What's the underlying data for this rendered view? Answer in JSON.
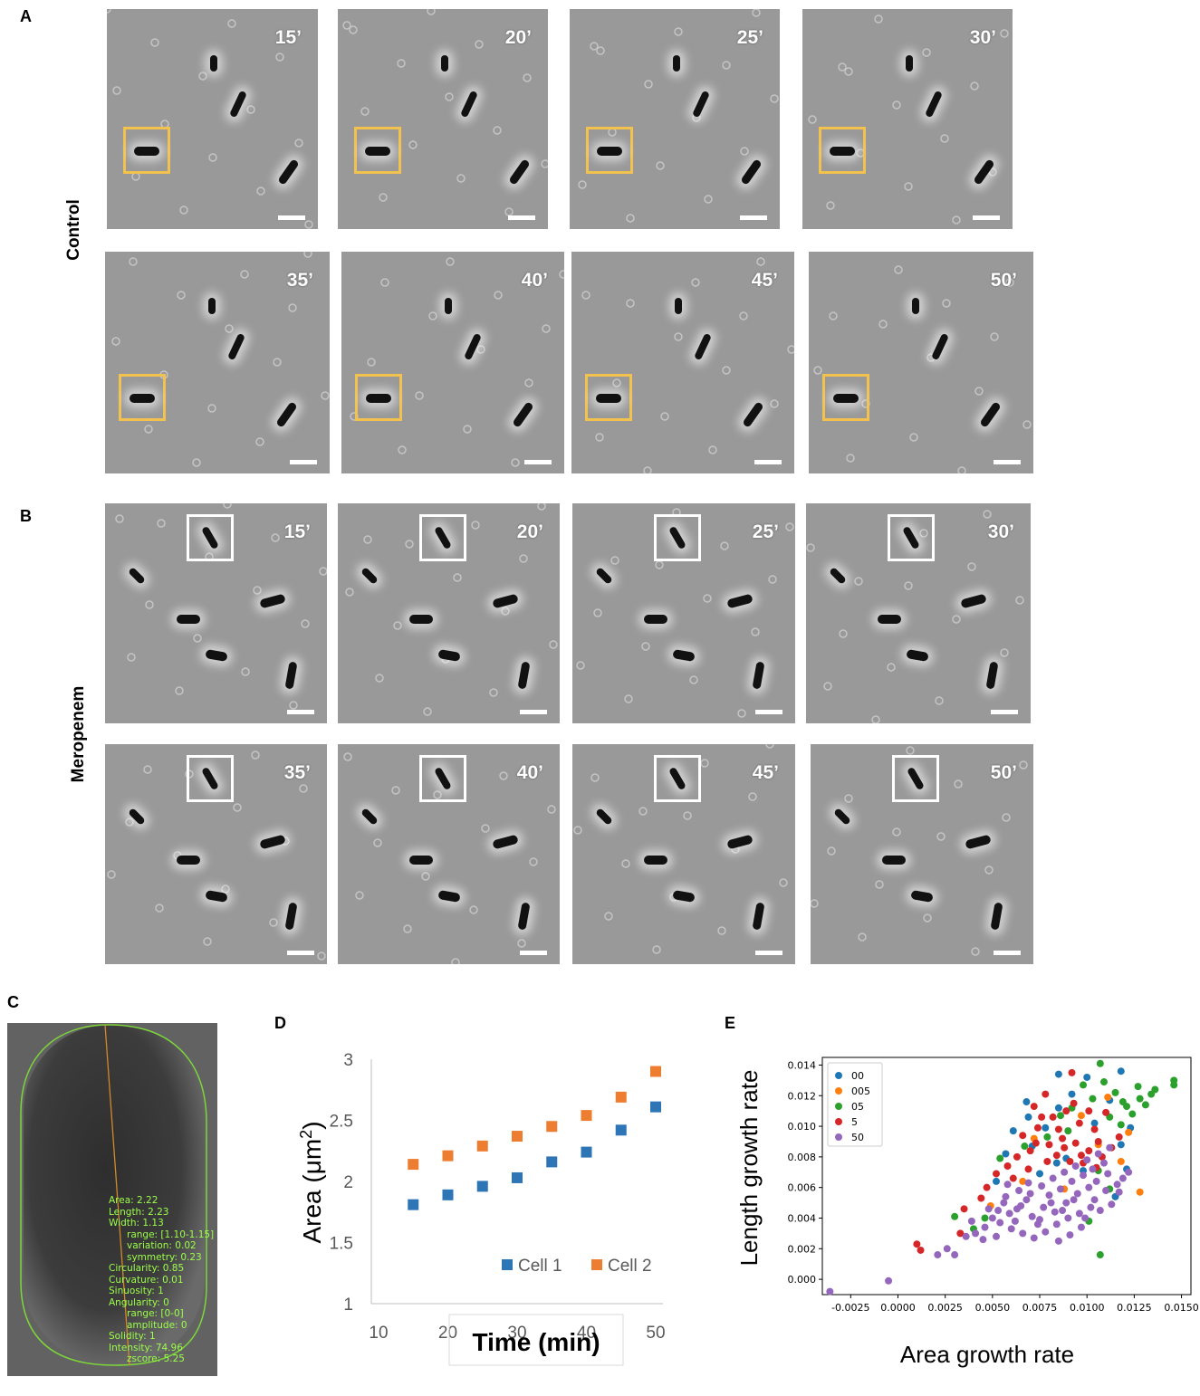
{
  "panel_labels": {
    "a": "A",
    "b": "B",
    "c": "C",
    "d": "D",
    "e": "E"
  },
  "row_labels": {
    "control": "Control",
    "meropenem": "Meropenem"
  },
  "time_labels": [
    "15’",
    "20’",
    "25’",
    "30’",
    "35’",
    "40’",
    "45’",
    "50’"
  ],
  "colors": {
    "control_box": "#f2c14e",
    "meropenem_box": "#ffffff",
    "cell1": "#2e75b6",
    "cell2": "#ed7d31",
    "outline": "#7dd63a"
  },
  "cell_measurements": [
    "Area: 2.22",
    "Length: 2.23",
    "Width: 1.13",
    "range: [1.10-1.15]",
    "variation: 0.02",
    "symmetry: 0.23",
    "Circularity: 0.85",
    "Curvature: 0.01",
    "Sinuosity: 1",
    "Angularity: 0",
    "range: [0-0]",
    "amplitude: 0",
    "Solidity: 1",
    "Intensity: 74.96",
    "zscore: 5.25"
  ],
  "chart_data": [
    {
      "type": "scatter",
      "panel": "D",
      "xlabel": "Time (min)",
      "ylabel": "Area (μm2)",
      "ylabel_main": "Area (μm",
      "ylabel_sup": "2",
      "ylabel_end": ")",
      "xlim": [
        10,
        50
      ],
      "ylim": [
        1,
        3
      ],
      "xticks": [
        "10",
        "20",
        "30",
        "40",
        "50"
      ],
      "yticks": [
        "1",
        "1.5",
        "2",
        "2.5",
        "3"
      ],
      "legend_position": "bottom-right",
      "series": [
        {
          "name": "Cell 1",
          "color": "#2e75b6",
          "x": [
            15,
            20,
            25,
            30,
            35,
            40,
            45,
            50
          ],
          "y": [
            1.81,
            1.89,
            1.96,
            2.03,
            2.16,
            2.24,
            2.42,
            2.61
          ]
        },
        {
          "name": "Cell 2",
          "color": "#ed7d31",
          "x": [
            15,
            20,
            25,
            30,
            35,
            40,
            45,
            50
          ],
          "y": [
            2.14,
            2.21,
            2.29,
            2.37,
            2.45,
            2.54,
            2.69,
            2.9
          ]
        }
      ]
    },
    {
      "type": "scatter",
      "panel": "E",
      "xlabel": "Area growth rate",
      "ylabel": "Length growth rate",
      "xlim": [
        -0.004,
        0.0155
      ],
      "ylim": [
        -0.001,
        0.0145
      ],
      "xticks": [
        "-0.0025",
        "0.0000",
        "0.0025",
        "0.0050",
        "0.0075",
        "0.0100",
        "0.0125",
        "0.0150"
      ],
      "yticks": [
        "0.000",
        "0.002",
        "0.004",
        "0.006",
        "0.008",
        "0.010",
        "0.012",
        "0.014"
      ],
      "legend_position": "top-left",
      "series": [
        {
          "name": "00",
          "color": "#1f77b4",
          "points": [
            [
              0.0085,
              0.0134
            ],
            [
              0.01,
              0.0132
            ],
            [
              0.0118,
              0.0136
            ],
            [
              0.0068,
              0.0116
            ],
            [
              0.0092,
              0.0121
            ],
            [
              0.0112,
              0.0117
            ],
            [
              0.0061,
              0.0097
            ],
            [
              0.0078,
              0.0099
            ],
            [
              0.0104,
              0.0102
            ],
            [
              0.0123,
              0.0099
            ],
            [
              0.0057,
              0.0082
            ],
            [
              0.0071,
              0.0087
            ],
            [
              0.0089,
              0.0079
            ],
            [
              0.0118,
              0.0088
            ],
            [
              0.0052,
              0.0064
            ],
            [
              0.0075,
              0.0069
            ],
            [
              0.0084,
              0.0076
            ],
            [
              0.0098,
              0.0071
            ],
            [
              0.0115,
              0.0054
            ],
            [
              0.0121,
              0.0072
            ],
            [
              0.0069,
              0.0106
            ],
            [
              0.0085,
              0.0112
            ]
          ]
        },
        {
          "name": "005",
          "color": "#ff7f0e",
          "points": [
            [
              0.0128,
              0.0057
            ],
            [
              0.0118,
              0.0077
            ],
            [
              0.0106,
              0.0088
            ],
            [
              0.0097,
              0.0107
            ],
            [
              0.0111,
              0.0119
            ],
            [
              0.0066,
              0.0064
            ],
            [
              0.0049,
              0.0048
            ],
            [
              0.0088,
              0.0059
            ],
            [
              0.0122,
              0.0096
            ],
            [
              0.0072,
              0.0092
            ]
          ]
        },
        {
          "name": "05",
          "color": "#2ca02c",
          "points": [
            [
              0.0146,
              0.013
            ],
            [
              0.0146,
              0.0127
            ],
            [
              0.0134,
              0.0121
            ],
            [
              0.0127,
              0.0126
            ],
            [
              0.0121,
              0.0113
            ],
            [
              0.0115,
              0.0122
            ],
            [
              0.0107,
              0.0141
            ],
            [
              0.0103,
              0.0118
            ],
            [
              0.0112,
              0.0106
            ],
            [
              0.0124,
              0.0108
            ],
            [
              0.0131,
              0.0114
            ],
            [
              0.0118,
              0.0101
            ],
            [
              0.0098,
              0.0127
            ],
            [
              0.0092,
              0.0112
            ],
            [
              0.0086,
              0.0107
            ],
            [
              0.0079,
              0.0093
            ],
            [
              0.0067,
              0.0087
            ],
            [
              0.0054,
              0.0079
            ],
            [
              0.0106,
              0.0071
            ],
            [
              0.0112,
              0.0059
            ],
            [
              0.0101,
              0.0038
            ],
            [
              0.0107,
              0.0016
            ],
            [
              0.0046,
              0.004
            ],
            [
              0.003,
              0.0041
            ],
            [
              0.004,
              0.0033
            ],
            [
              0.0119,
              0.0116
            ],
            [
              0.0128,
              0.0118
            ],
            [
              0.0136,
              0.0124
            ],
            [
              0.0109,
              0.0129
            ],
            [
              0.009,
              0.0097
            ]
          ]
        },
        {
          "name": "5",
          "color": "#d62728",
          "points": [
            [
              0.0092,
              0.0135
            ],
            [
              0.0078,
              0.0121
            ],
            [
              0.0072,
              0.0113
            ],
            [
              0.0082,
              0.0106
            ],
            [
              0.0089,
              0.011
            ],
            [
              0.0096,
              0.0102
            ],
            [
              0.0104,
              0.0098
            ],
            [
              0.0074,
              0.0099
            ],
            [
              0.0066,
              0.0094
            ],
            [
              0.008,
              0.0088
            ],
            [
              0.0087,
              0.0092
            ],
            [
              0.0094,
              0.0089
            ],
            [
              0.0101,
              0.0084
            ],
            [
              0.0108,
              0.008
            ],
            [
              0.0113,
              0.0086
            ],
            [
              0.007,
              0.0084
            ],
            [
              0.0063,
              0.008
            ],
            [
              0.0058,
              0.0074
            ],
            [
              0.0084,
              0.0081
            ],
            [
              0.0091,
              0.0077
            ],
            [
              0.0098,
              0.0076
            ],
            [
              0.0105,
              0.0073
            ],
            [
              0.0052,
              0.0069
            ],
            [
              0.0047,
              0.006
            ],
            [
              0.0044,
              0.0053
            ],
            [
              0.0035,
              0.0046
            ],
            [
              0.0033,
              0.003
            ],
            [
              0.001,
              0.0023
            ],
            [
              0.0012,
              0.0019
            ],
            [
              0.0076,
              0.0106
            ],
            [
              0.0085,
              0.0098
            ],
            [
              0.0093,
              0.0115
            ],
            [
              0.0101,
              0.011
            ],
            [
              0.011,
              0.0109
            ],
            [
              0.0117,
              0.0093
            ],
            [
              0.0079,
              0.0077
            ],
            [
              0.0069,
              0.0072
            ],
            [
              0.0061,
              0.0066
            ],
            [
              0.0097,
              0.0081
            ],
            [
              0.0088,
              0.0086
            ],
            [
              0.0073,
              0.0089
            ],
            [
              0.0106,
              0.009
            ]
          ]
        },
        {
          "name": "50",
          "color": "#9467bd",
          "points": [
            [
              -0.0036,
              -0.0008
            ],
            [
              -0.0005,
              -0.0001
            ],
            [
              0.0021,
              0.0016
            ],
            [
              0.0026,
              0.002
            ],
            [
              0.003,
              0.0016
            ],
            [
              0.0036,
              0.0028
            ],
            [
              0.0041,
              0.003
            ],
            [
              0.0046,
              0.0034
            ],
            [
              0.005,
              0.004
            ],
            [
              0.0053,
              0.0045
            ],
            [
              0.0056,
              0.005
            ],
            [
              0.0059,
              0.0043
            ],
            [
              0.0062,
              0.0038
            ],
            [
              0.0065,
              0.0048
            ],
            [
              0.0068,
              0.0052
            ],
            [
              0.0071,
              0.0041
            ],
            [
              0.0074,
              0.0036
            ],
            [
              0.0077,
              0.0047
            ],
            [
              0.008,
              0.0055
            ],
            [
              0.0083,
              0.0044
            ],
            [
              0.0086,
              0.0059
            ],
            [
              0.0089,
              0.005
            ],
            [
              0.0092,
              0.0064
            ],
            [
              0.0095,
              0.0056
            ],
            [
              0.0098,
              0.0068
            ],
            [
              0.0101,
              0.006
            ],
            [
              0.0104,
              0.0052
            ],
            [
              0.0107,
              0.0045
            ],
            [
              0.011,
              0.0058
            ],
            [
              0.0113,
              0.0049
            ],
            [
              0.0116,
              0.0062
            ],
            [
              0.0119,
              0.0066
            ],
            [
              0.0122,
              0.007
            ],
            [
              0.0066,
              0.003
            ],
            [
              0.0072,
              0.0027
            ],
            [
              0.0078,
              0.0031
            ],
            [
              0.0084,
              0.0036
            ],
            [
              0.009,
              0.004
            ],
            [
              0.0096,
              0.0043
            ],
            [
              0.0102,
              0.0047
            ],
            [
              0.0058,
              0.0062
            ],
            [
              0.0064,
              0.0058
            ],
            [
              0.007,
              0.0056
            ],
            [
              0.0076,
              0.0061
            ],
            [
              0.0082,
              0.0066
            ],
            [
              0.0088,
              0.007
            ],
            [
              0.0094,
              0.0074
            ],
            [
              0.01,
              0.0078
            ],
            [
              0.0106,
              0.0082
            ],
            [
              0.0112,
              0.0086
            ],
            [
              0.0054,
              0.0037
            ],
            [
              0.0048,
              0.0046
            ],
            [
              0.0057,
              0.0054
            ],
            [
              0.0063,
              0.0046
            ],
            [
              0.0069,
              0.0063
            ],
            [
              0.0075,
              0.0039
            ],
            [
              0.0081,
              0.005
            ],
            [
              0.0087,
              0.0045
            ],
            [
              0.0093,
              0.0052
            ],
            [
              0.0099,
              0.004
            ],
            [
              0.0105,
              0.0064
            ],
            [
              0.0111,
              0.0069
            ],
            [
              0.0117,
              0.0057
            ],
            [
              0.0085,
              0.0025
            ],
            [
              0.0091,
              0.0029
            ],
            [
              0.0097,
              0.0034
            ],
            [
              0.0103,
              0.0072
            ],
            [
              0.0109,
              0.0076
            ],
            [
              0.006,
              0.0033
            ],
            [
              0.0045,
              0.0026
            ],
            [
              0.0039,
              0.0038
            ],
            [
              0.0052,
              0.0028
            ]
          ]
        }
      ]
    }
  ]
}
